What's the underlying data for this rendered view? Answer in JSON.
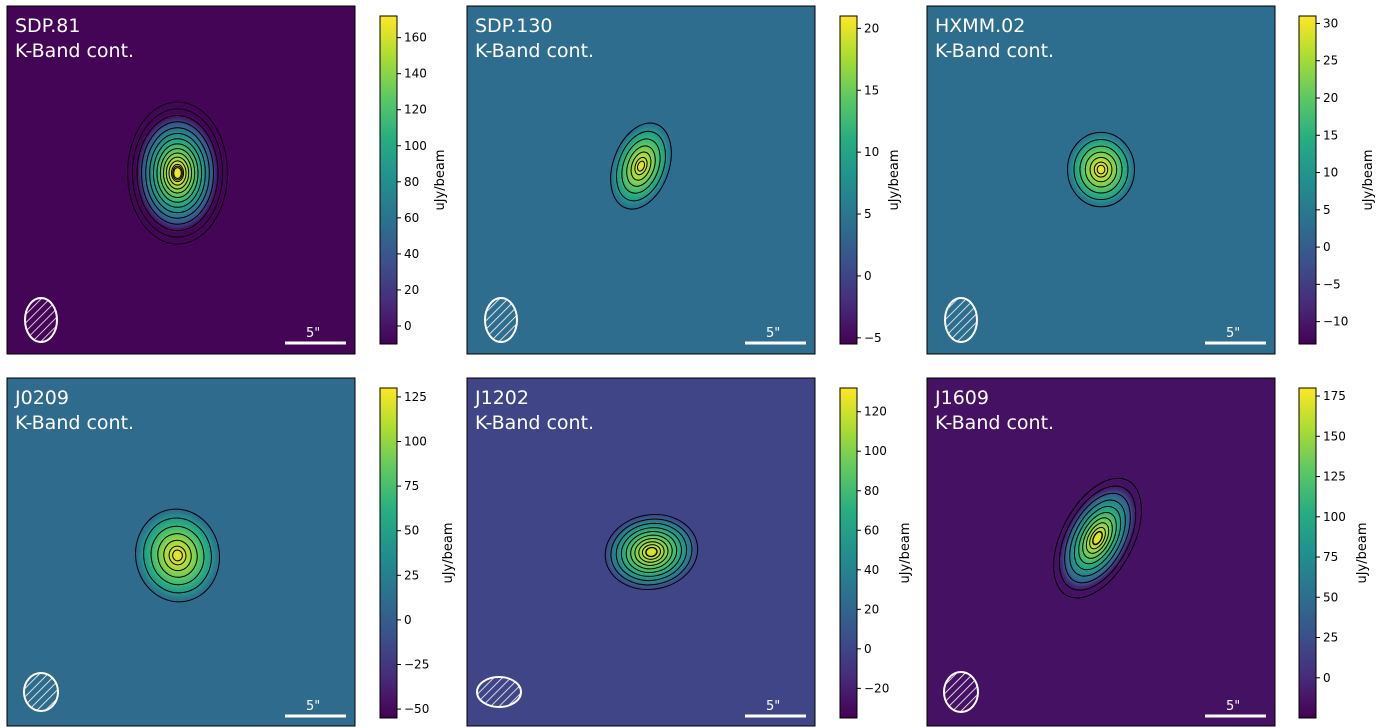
{
  "chart_data": [
    {
      "type": "heatmap",
      "title": "SDP.81",
      "subtitle": "K-Band cont.",
      "colorbar": {
        "label": "uJy/beam",
        "range": [
          -10,
          172
        ],
        "ticks": [
          0,
          20,
          40,
          60,
          80,
          100,
          120,
          140,
          160
        ],
        "colormap": "viridis"
      },
      "scalebar_label": "5\"",
      "source": {
        "peak": 172,
        "position": [
          0.49,
          0.48
        ],
        "shape": "compact ellipse, vertically elongated"
      },
      "background": -8
    },
    {
      "type": "heatmap",
      "title": "SDP.130",
      "subtitle": "K-Band cont.",
      "colorbar": {
        "label": "uJy/beam",
        "range": [
          -5.5,
          21
        ],
        "ticks": [
          -5,
          0,
          5,
          10,
          15,
          20
        ],
        "colormap": "viridis"
      },
      "scalebar_label": "5\"",
      "source": {
        "peak": 20,
        "position": [
          0.5,
          0.46
        ],
        "shape": "compact, tilted"
      },
      "background": 4
    },
    {
      "type": "heatmap",
      "title": "HXMM.02",
      "subtitle": "K-Band cont.",
      "colorbar": {
        "label": "uJy/beam",
        "range": [
          -13,
          31
        ],
        "ticks": [
          -10,
          -5,
          0,
          5,
          10,
          15,
          20,
          25,
          30
        ],
        "colormap": "viridis"
      },
      "scalebar_label": "5\"",
      "source": {
        "peak": 30,
        "position": [
          0.5,
          0.47
        ],
        "shape": "compact"
      },
      "background": 3
    },
    {
      "type": "heatmap",
      "title": "J0209",
      "subtitle": "K-Band cont.",
      "colorbar": {
        "label": "uJy/beam",
        "range": [
          -55,
          130
        ],
        "ticks": [
          -50,
          -25,
          0,
          25,
          50,
          75,
          100,
          125
        ],
        "colormap": "viridis"
      },
      "scalebar_label": "5\"",
      "source": {
        "peak": 125,
        "position": [
          0.49,
          0.51
        ],
        "shape": "compact with extended halo"
      },
      "background": 10
    },
    {
      "type": "heatmap",
      "title": "J1202",
      "subtitle": "K-Band cont.",
      "colorbar": {
        "label": "uJy/beam",
        "range": [
          -35,
          132
        ],
        "ticks": [
          -20,
          0,
          20,
          40,
          60,
          80,
          100,
          120
        ],
        "colormap": "viridis"
      },
      "scalebar_label": "5\"",
      "source": {
        "peak": 125,
        "position": [
          0.53,
          0.5
        ],
        "shape": "compact with western extension"
      },
      "background": 0
    },
    {
      "type": "heatmap",
      "title": "J1609",
      "subtitle": "K-Band cont.",
      "colorbar": {
        "label": "uJy/beam",
        "range": [
          -25,
          180
        ],
        "ticks": [
          0,
          25,
          50,
          75,
          100,
          125,
          150,
          175
        ],
        "colormap": "viridis"
      },
      "scalebar_label": "5\"",
      "source": {
        "peak": 175,
        "position": [
          0.49,
          0.46
        ],
        "shape": "elongated, tilted"
      },
      "background": -15
    }
  ],
  "colormap_stops": [
    "#440154",
    "#472c7a",
    "#3b518b",
    "#2c718e",
    "#21908d",
    "#27ad81",
    "#5cc863",
    "#aadc32",
    "#fde725"
  ]
}
